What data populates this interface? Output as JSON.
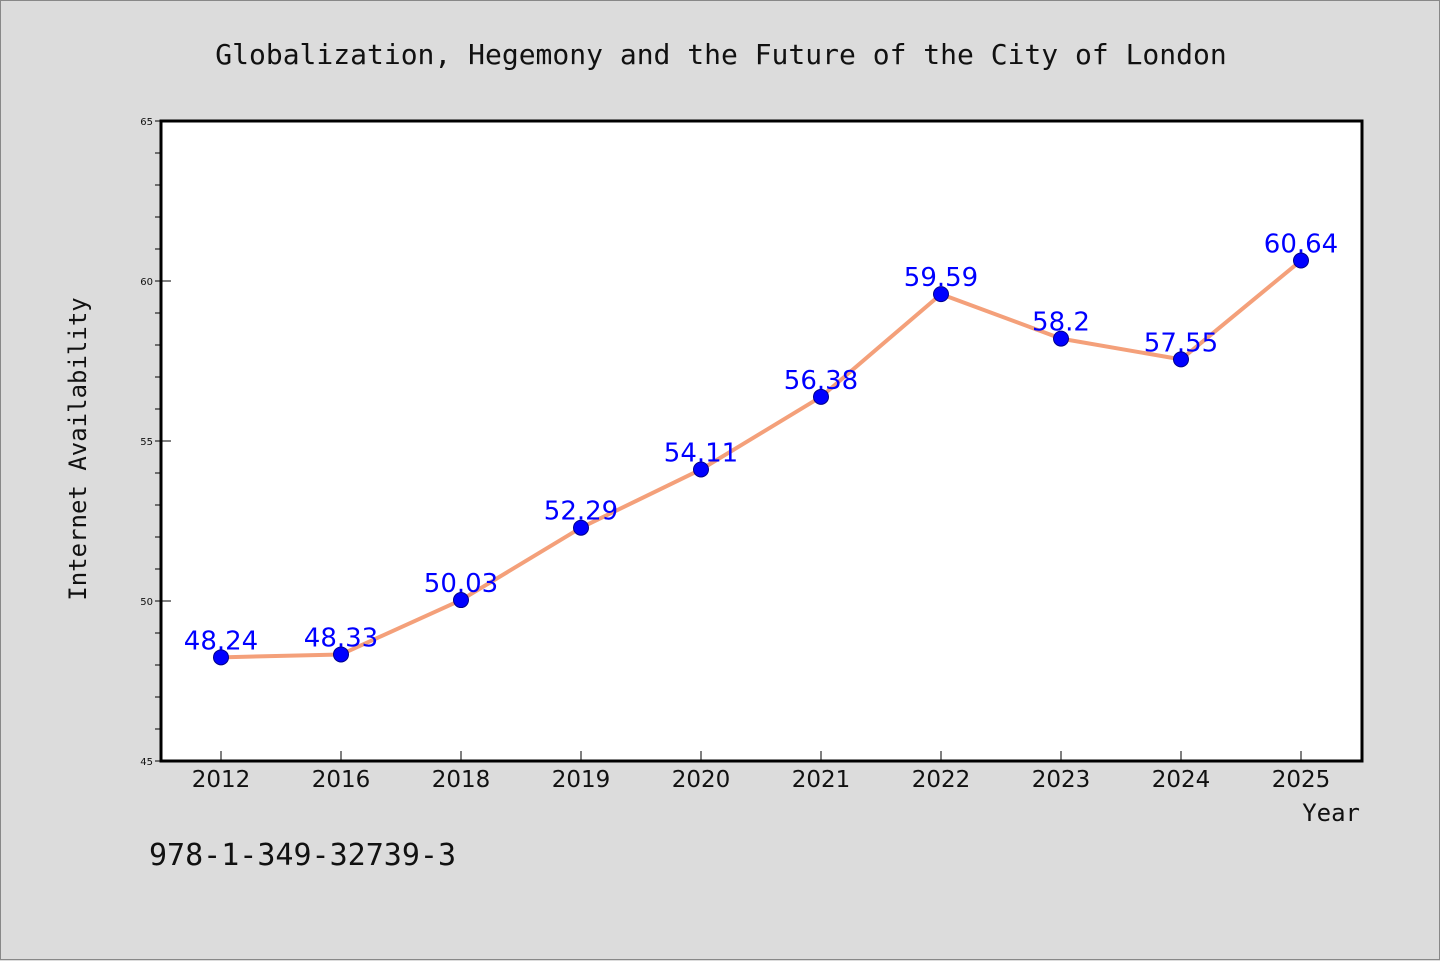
{
  "chart_data": {
    "type": "line",
    "title": "Globalization, Hegemony and the Future of the City of London",
    "xlabel": "Year",
    "ylabel": "Internet Availability",
    "categories": [
      "2012",
      "2016",
      "2018",
      "2019",
      "2020",
      "2021",
      "2022",
      "2023",
      "2024",
      "2025"
    ],
    "series": [
      {
        "values": [
          48.24,
          48.33,
          50.03,
          52.29,
          54.11,
          56.38,
          59.59,
          58.2,
          57.55,
          60.64
        ],
        "data_labels": [
          "48.24",
          "48.33",
          "50.03",
          "52.29",
          "54.11",
          "56.38",
          "59.59",
          "58.2",
          "57.55",
          "60.64"
        ]
      }
    ],
    "ylim": [
      45,
      65
    ],
    "yticks": [
      "45",
      "50",
      "55",
      "60",
      "65"
    ],
    "grid": false,
    "legend": "none",
    "colors": {
      "line": "#f4a07a",
      "marker": "#0000ff",
      "label": "#0000ff",
      "background": "#dcdcdc",
      "plot_area": "#ffffff"
    },
    "footer_text": "978-1-349-32739-3"
  }
}
